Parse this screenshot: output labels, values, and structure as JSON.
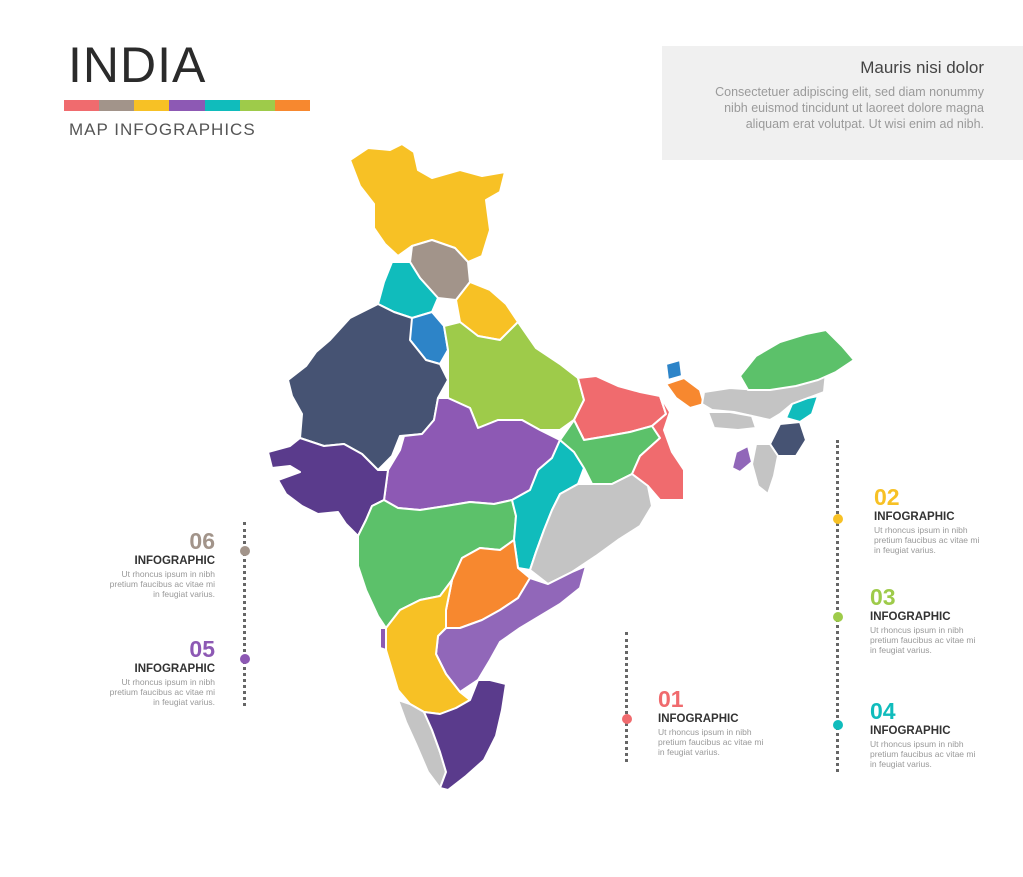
{
  "header": {
    "title": "INDIA",
    "subtitle": "MAP INFOGRAPHICS",
    "palette": [
      "#f06b6e",
      "#a2948a",
      "#f7c125",
      "#8d59b4",
      "#10bcbc",
      "#9ecb4a",
      "#f7882f"
    ]
  },
  "textbox": {
    "heading": "Mauris nisi dolor",
    "body": "Consectetuer adipiscing elit, sed diam nonummy nibh euismod tincidunt ut laoreet dolore magna aliquam erat volutpat. Ut wisi enim ad nibh."
  },
  "infos": [
    {
      "num": "01",
      "label": "INFOGRAPHIC",
      "text": "Ut rhoncus ipsum in nibh pretium faucibus ac vitae mi in feugiat varius.",
      "color": "#f06b6e"
    },
    {
      "num": "02",
      "label": "INFOGRAPHIC",
      "text": "Ut rhoncus ipsum in nibh pretium faucibus ac vitae mi in feugiat varius.",
      "color": "#f7c125"
    },
    {
      "num": "03",
      "label": "INFOGRAPHIC",
      "text": "Ut rhoncus ipsum in nibh pretium faucibus ac vitae mi in feugiat varius.",
      "color": "#9ecb4a"
    },
    {
      "num": "04",
      "label": "INFOGRAPHIC",
      "text": "Ut rhoncus ipsum in nibh pretium faucibus ac vitae mi in feugiat varius.",
      "color": "#10bcbc"
    },
    {
      "num": "05",
      "label": "INFOGRAPHIC",
      "text": "Ut rhoncus ipsum in nibh pretium faucibus ac vitae mi in feugiat varius.",
      "color": "#8d59b4"
    },
    {
      "num": "06",
      "label": "INFOGRAPHIC",
      "text": "Ut rhoncus ipsum in nibh pretium faucibus ac vitae mi in feugiat varius.",
      "color": "#a2948a"
    }
  ],
  "map_colors": {
    "yellow": "#f7c125",
    "taupe": "#a2948a",
    "teal": "#10bcbc",
    "blue": "#2d84c8",
    "navy": "#465373",
    "lime": "#9ecb4a",
    "purple": "#8d59b4",
    "coral": "#f06b6e",
    "green": "#5cc16a",
    "gray": "#c4c4c4",
    "orange": "#f7882f",
    "deeppurple": "#5a3b8c",
    "violet": "#9167b9"
  }
}
